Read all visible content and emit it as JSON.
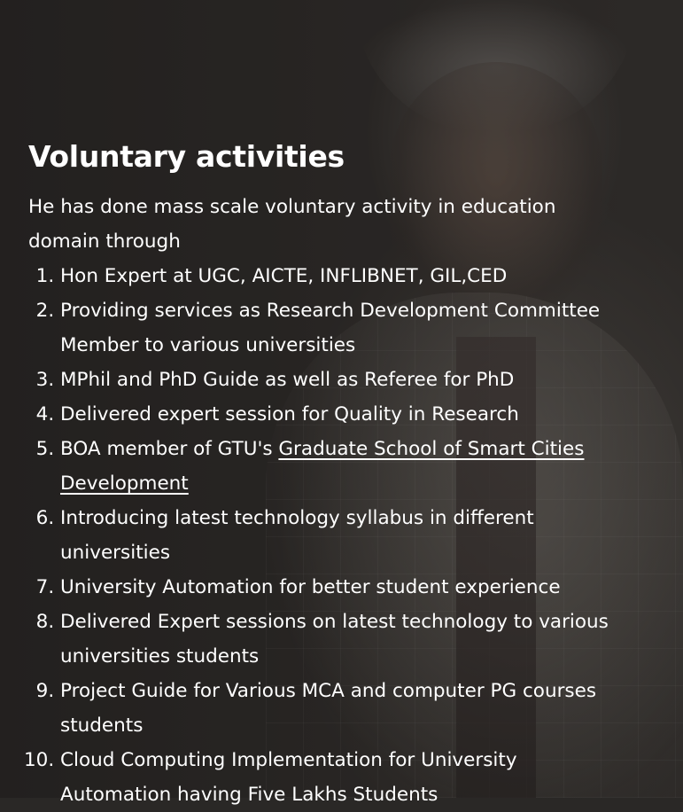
{
  "section": {
    "title": "Voluntary activities",
    "intro": "He has done mass scale voluntary activity in education domain through"
  },
  "activities": [
    {
      "text": "Hon Expert at UGC, AICTE, INFLIBNET, GIL,CED"
    },
    {
      "text": "Providing services as Research Development Committee Member to various universities"
    },
    {
      "text": "MPhil and PhD Guide as well as Referee for PhD"
    },
    {
      "text": "Delivered expert session for Quality in Research"
    },
    {
      "prefix": "BOA member of GTU's ",
      "link": "Graduate School of Smart Cities Development"
    },
    {
      "text": "Introducing latest technology syllabus in different universities"
    },
    {
      "text": "University Automation for better student experience"
    },
    {
      "text": "Delivered Expert sessions on latest technology to various universities students"
    },
    {
      "text": "Project Guide for Various MCA and computer PG courses students"
    },
    {
      "text": "Cloud Computing Implementation for University Automation having Five Lakhs Students"
    }
  ]
}
